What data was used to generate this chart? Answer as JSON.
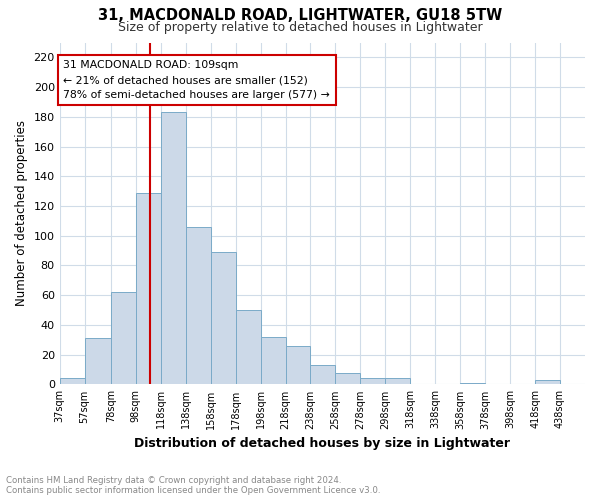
{
  "title": "31, MACDONALD ROAD, LIGHTWATER, GU18 5TW",
  "subtitle": "Size of property relative to detached houses in Lightwater",
  "xlabel": "Distribution of detached houses by size in Lightwater",
  "ylabel": "Number of detached properties",
  "bin_labels": [
    "37sqm",
    "57sqm",
    "78sqm",
    "98sqm",
    "118sqm",
    "138sqm",
    "158sqm",
    "178sqm",
    "198sqm",
    "218sqm",
    "238sqm",
    "258sqm",
    "278sqm",
    "298sqm",
    "318sqm",
    "338sqm",
    "358sqm",
    "378sqm",
    "398sqm",
    "418sqm",
    "438sqm"
  ],
  "bin_edges": [
    37,
    57,
    78,
    98,
    118,
    138,
    158,
    178,
    198,
    218,
    238,
    258,
    278,
    298,
    318,
    338,
    358,
    378,
    398,
    418,
    438,
    458
  ],
  "bar_heights": [
    4,
    31,
    62,
    129,
    183,
    106,
    89,
    50,
    32,
    26,
    13,
    8,
    4,
    4,
    0,
    0,
    1,
    0,
    0,
    3,
    0
  ],
  "bar_color": "#ccd9e8",
  "bar_edge_color": "#7aaac8",
  "property_value": 109,
  "red_line_color": "#cc0000",
  "annotation_line1": "31 MACDONALD ROAD: 109sqm",
  "annotation_line2": "← 21% of detached houses are smaller (152)",
  "annotation_line3": "78% of semi-detached houses are larger (577) →",
  "annotation_box_color": "#ffffff",
  "annotation_box_edge": "#cc0000",
  "ylim": [
    0,
    230
  ],
  "yticks": [
    0,
    20,
    40,
    60,
    80,
    100,
    120,
    140,
    160,
    180,
    200,
    220
  ],
  "footer_text": "Contains HM Land Registry data © Crown copyright and database right 2024.\nContains public sector information licensed under the Open Government Licence v3.0.",
  "bg_color": "#ffffff",
  "grid_color": "#d0dce8"
}
